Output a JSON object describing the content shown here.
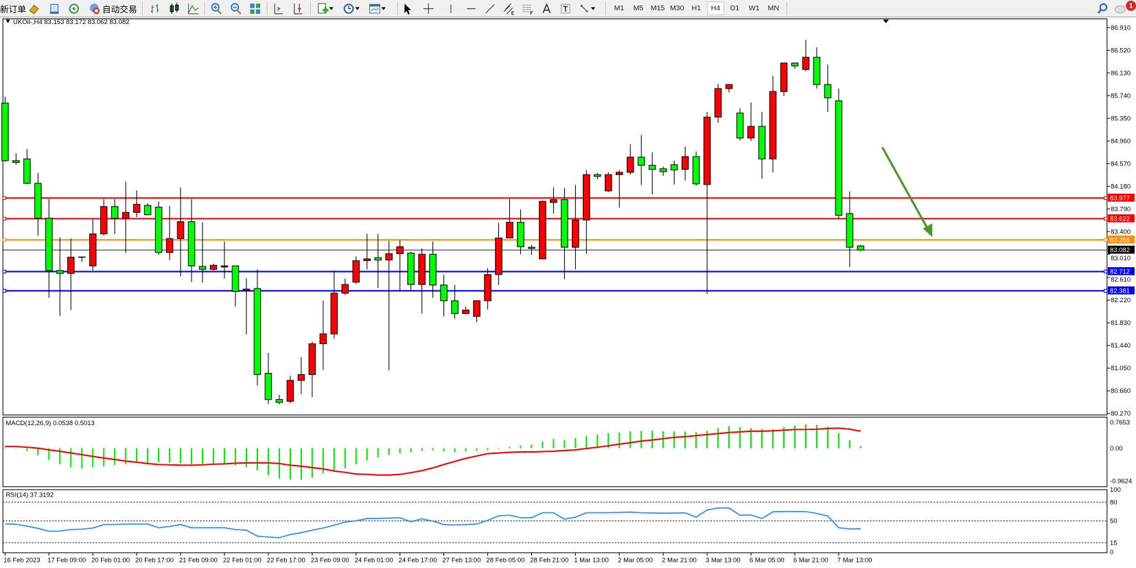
{
  "toolbar": {
    "new_order_label": "新订单",
    "auto_trading_label": "自动交易",
    "icons": [
      "metaeditor-icon",
      "terminal-icon",
      "signals-icon"
    ],
    "chart_icons": [
      "bar-chart-icon",
      "candlestick-icon",
      "line-chart-icon",
      "zoom-in-icon",
      "zoom-out-icon",
      "tile-windows-icon",
      "auto-scroll-icon",
      "chart-shift-icon",
      "indicators-icon",
      "periods-icon",
      "templates-icon"
    ],
    "draw_icons": [
      "cursor-icon",
      "crosshair-icon",
      "vertical-line-icon",
      "horizontal-line-icon",
      "trendline-icon",
      "equidistant-channel-icon",
      "fibonacci-icon",
      "text-icon",
      "text-label-icon",
      "arrows-icon"
    ],
    "timeframes": [
      "M1",
      "M5",
      "M15",
      "M30",
      "H1",
      "H4",
      "D1",
      "W1",
      "MN"
    ],
    "active_timeframe": "H4",
    "notification_count": "1"
  },
  "chart": {
    "header": "UKOil-,H4  83.153 83.172 83.062 83.082",
    "macd_label": "MACD(12,26,9) 0.0538 0.5013",
    "rsi_label": "RSI(14) 37.3192",
    "colors": {
      "bull": "#ff0000",
      "bear": "#00ff00",
      "resistance": "#ff0000",
      "pivot": "#ff8c00",
      "support": "#0000ff",
      "macd_signal": "#ff0000",
      "macd_hist": "#00ee00",
      "rsi": "#1e90ff",
      "arrow": "#4a9a2a"
    }
  },
  "chart_data": {
    "type": "candlestick",
    "symbol": "UKOil-",
    "timeframe": "H4",
    "ylim": [
      80.245,
      87.06
    ],
    "price_ticks": [
      "86.910",
      "86.520",
      "86.130",
      "85.740",
      "85.350",
      "84.960",
      "84.570",
      "84.180",
      "83.790",
      "83.400",
      "83.010",
      "82.610",
      "82.220",
      "81.830",
      "81.440",
      "81.050",
      "80.660",
      "80.270"
    ],
    "time_labels": [
      "16 Feb 2023",
      "17 Feb 09:00",
      "20 Feb 01:00",
      "20 Feb 17:00",
      "21 Feb 09:00",
      "22 Feb 01:00",
      "22 Feb 17:00",
      "23 Feb 09:00",
      "24 Feb 01:00",
      "24 Feb 17:00",
      "27 Feb 13:00",
      "28 Feb 05:00",
      "28 Feb 21:00",
      "1 Mar 13:00",
      "2 Mar 05:00",
      "2 Mar 21:00",
      "3 Mar 13:00",
      "6 Mar 05:00",
      "6 Mar 21:00",
      "7 Mar 13:00"
    ],
    "time_label_every": 4,
    "ohlc": [
      [
        85.61,
        85.72,
        84.6,
        84.62
      ],
      [
        84.62,
        84.75,
        84.55,
        84.59
      ],
      [
        84.65,
        84.82,
        84.22,
        84.23
      ],
      [
        84.23,
        84.41,
        83.33,
        83.63
      ],
      [
        83.63,
        83.96,
        82.26,
        82.73
      ],
      [
        82.73,
        83.3,
        81.95,
        82.68
      ],
      [
        82.68,
        83.28,
        82.05,
        82.96
      ],
      [
        82.96,
        82.97,
        82.88,
        82.96
      ],
      [
        82.81,
        83.61,
        82.73,
        83.36
      ],
      [
        83.36,
        83.96,
        83.33,
        83.83
      ],
      [
        83.83,
        83.96,
        83.36,
        83.63
      ],
      [
        83.63,
        84.26,
        83.03,
        83.73
      ],
      [
        83.73,
        84.11,
        83.65,
        83.87
      ],
      [
        83.85,
        83.89,
        83.68,
        83.69
      ],
      [
        83.82,
        83.92,
        83.0,
        83.04
      ],
      [
        83.04,
        83.84,
        82.91,
        83.28
      ],
      [
        83.28,
        84.16,
        82.63,
        83.57
      ],
      [
        83.57,
        83.96,
        82.53,
        82.81
      ],
      [
        82.8,
        83.56,
        82.52,
        82.75
      ],
      [
        82.75,
        82.85,
        82.73,
        82.82
      ],
      [
        82.79,
        83.23,
        82.59,
        82.81
      ],
      [
        82.81,
        82.81,
        82.11,
        82.37
      ],
      [
        82.39,
        82.6,
        81.63,
        82.41
      ],
      [
        82.42,
        82.75,
        80.75,
        80.94
      ],
      [
        80.96,
        81.31,
        80.43,
        80.51
      ],
      [
        80.51,
        80.59,
        80.43,
        80.46
      ],
      [
        80.48,
        80.92,
        80.45,
        80.84
      ],
      [
        80.84,
        81.24,
        80.6,
        80.94
      ],
      [
        80.94,
        81.51,
        80.55,
        81.47
      ],
      [
        81.47,
        82.21,
        81.02,
        81.64
      ],
      [
        81.64,
        82.73,
        81.56,
        82.34
      ],
      [
        82.34,
        82.59,
        82.31,
        82.49
      ],
      [
        82.53,
        82.97,
        82.5,
        82.9
      ],
      [
        82.9,
        83.36,
        82.75,
        82.93
      ],
      [
        82.95,
        83.36,
        82.43,
        82.91
      ],
      [
        82.91,
        83.24,
        81.01,
        83.02
      ],
      [
        83.02,
        83.25,
        82.37,
        83.14
      ],
      [
        83.03,
        83.05,
        82.39,
        82.49
      ],
      [
        82.49,
        83.11,
        81.99,
        83.01
      ],
      [
        83.01,
        83.23,
        82.26,
        82.48
      ],
      [
        82.48,
        82.66,
        81.94,
        82.21
      ],
      [
        82.21,
        82.48,
        81.9,
        81.99
      ],
      [
        81.99,
        82.11,
        81.98,
        82.05
      ],
      [
        81.94,
        82.22,
        81.84,
        82.21
      ],
      [
        82.21,
        82.77,
        82.06,
        82.66
      ],
      [
        82.66,
        83.55,
        82.48,
        83.29
      ],
      [
        83.29,
        83.96,
        83.29,
        83.56
      ],
      [
        83.56,
        83.78,
        83.01,
        83.14
      ],
      [
        83.13,
        83.17,
        83.0,
        83.11
      ],
      [
        82.93,
        83.93,
        82.93,
        83.92
      ],
      [
        83.9,
        84.16,
        83.71,
        83.95
      ],
      [
        83.95,
        84.15,
        82.58,
        83.13
      ],
      [
        83.13,
        84.2,
        82.75,
        83.6
      ],
      [
        83.6,
        84.46,
        83.02,
        84.38
      ],
      [
        84.38,
        84.41,
        84.3,
        84.35
      ],
      [
        84.1,
        84.42,
        84.08,
        84.38
      ],
      [
        84.38,
        84.46,
        83.81,
        84.42
      ],
      [
        84.42,
        84.9,
        84.38,
        84.68
      ],
      [
        84.68,
        85.06,
        84.2,
        84.54
      ],
      [
        84.54,
        84.76,
        84.04,
        84.47
      ],
      [
        84.48,
        84.52,
        84.36,
        84.43
      ],
      [
        84.55,
        84.62,
        84.21,
        84.46
      ],
      [
        84.47,
        84.86,
        84.28,
        84.69
      ],
      [
        84.69,
        84.78,
        84.19,
        84.22
      ],
      [
        84.21,
        85.46,
        82.33,
        85.37
      ],
      [
        85.37,
        85.94,
        85.27,
        85.86
      ],
      [
        85.86,
        85.93,
        85.79,
        85.93
      ],
      [
        85.44,
        85.52,
        84.97,
        85.01
      ],
      [
        85.01,
        85.62,
        84.96,
        85.21
      ],
      [
        85.21,
        85.46,
        84.31,
        84.65
      ],
      [
        84.65,
        86.08,
        84.42,
        85.81
      ],
      [
        85.81,
        86.3,
        85.73,
        86.3
      ],
      [
        86.3,
        86.3,
        86.2,
        86.25
      ],
      [
        86.19,
        86.7,
        86.16,
        86.4
      ],
      [
        86.4,
        86.57,
        85.86,
        85.93
      ],
      [
        85.93,
        86.27,
        85.46,
        85.7
      ],
      [
        85.65,
        85.86,
        83.62,
        83.68
      ],
      [
        83.71,
        84.09,
        82.79,
        83.13
      ],
      [
        83.153,
        83.172,
        83.062,
        83.082
      ]
    ],
    "current_price": "83.082",
    "levels": [
      {
        "price": "83.977",
        "kind": "resistance"
      },
      {
        "price": "83.622",
        "kind": "resistance"
      },
      {
        "price": "83.256",
        "kind": "pivot"
      },
      {
        "price": "82.712",
        "kind": "support"
      },
      {
        "price": "82.381",
        "kind": "support"
      }
    ],
    "macd": {
      "ylim": [
        -0.9624,
        0.7653
      ],
      "ticks": [
        "0.7653",
        "0.00",
        "-0.9624"
      ],
      "histogram": [
        0.02,
        0.01,
        -0.08,
        -0.21,
        -0.34,
        -0.47,
        -0.56,
        -0.59,
        -0.56,
        -0.53,
        -0.5,
        -0.47,
        -0.44,
        -0.43,
        -0.41,
        -0.43,
        -0.44,
        -0.47,
        -0.47,
        -0.47,
        -0.47,
        -0.5,
        -0.56,
        -0.65,
        -0.79,
        -0.89,
        -0.92,
        -0.92,
        -0.86,
        -0.74,
        -0.68,
        -0.59,
        -0.47,
        -0.36,
        -0.27,
        -0.2,
        -0.15,
        -0.12,
        -0.08,
        -0.06,
        -0.09,
        -0.12,
        -0.1,
        -0.08,
        -0.06,
        -0.02,
        0.04,
        0.08,
        0.1,
        0.2,
        0.27,
        0.24,
        0.3,
        0.36,
        0.4,
        0.44,
        0.46,
        0.5,
        0.51,
        0.52,
        0.5,
        0.5,
        0.49,
        0.47,
        0.51,
        0.59,
        0.65,
        0.62,
        0.59,
        0.57,
        0.56,
        0.62,
        0.66,
        0.7,
        0.68,
        0.63,
        0.44,
        0.23,
        0.0538
      ],
      "signal": [
        0.05,
        0.05,
        0.03,
        0.0,
        -0.05,
        -0.09,
        -0.14,
        -0.19,
        -0.24,
        -0.29,
        -0.33,
        -0.38,
        -0.41,
        -0.45,
        -0.48,
        -0.49,
        -0.5,
        -0.5,
        -0.49,
        -0.47,
        -0.46,
        -0.44,
        -0.43,
        -0.43,
        -0.43,
        -0.45,
        -0.5,
        -0.53,
        -0.57,
        -0.61,
        -0.67,
        -0.71,
        -0.76,
        -0.77,
        -0.79,
        -0.79,
        -0.77,
        -0.72,
        -0.66,
        -0.58,
        -0.48,
        -0.39,
        -0.3,
        -0.23,
        -0.16,
        -0.14,
        -0.12,
        -0.11,
        -0.11,
        -0.1,
        -0.09,
        -0.07,
        -0.05,
        -0.01,
        0.03,
        0.07,
        0.12,
        0.16,
        0.21,
        0.24,
        0.28,
        0.32,
        0.34,
        0.37,
        0.4,
        0.43,
        0.46,
        0.48,
        0.5,
        0.5,
        0.51,
        0.53,
        0.55,
        0.55,
        0.56,
        0.58,
        0.59,
        0.56,
        0.5013
      ]
    },
    "rsi": {
      "ylim": [
        0,
        100
      ],
      "ticks": [
        "100",
        "80",
        "50",
        "15",
        "0"
      ],
      "levels": [
        80,
        50,
        15
      ],
      "values": [
        45.2,
        44.5,
        41.5,
        38,
        33.3,
        33.5,
        36,
        36.7,
        38.5,
        44,
        44.2,
        44.8,
        44.8,
        44.8,
        38.9,
        41,
        44,
        39,
        39,
        39,
        39,
        36,
        35,
        25.6,
        24,
        23,
        28,
        31,
        35,
        38.5,
        43,
        48,
        50,
        53.7,
        54,
        54.4,
        55,
        48.5,
        53.3,
        49.5,
        44,
        43.3,
        44,
        45,
        50.7,
        58,
        59,
        55,
        55,
        63,
        63,
        52.6,
        56,
        63,
        63,
        63,
        63.5,
        64,
        63,
        62.6,
        62.2,
        62.5,
        62.8,
        56,
        67.4,
        70.7,
        70.5,
        59,
        59.5,
        53.7,
        64.4,
        65,
        65,
        64.8,
        61.9,
        57.8,
        39,
        37,
        37.3192
      ]
    },
    "annotation": {
      "type": "arrow",
      "direction": "down-right"
    }
  }
}
